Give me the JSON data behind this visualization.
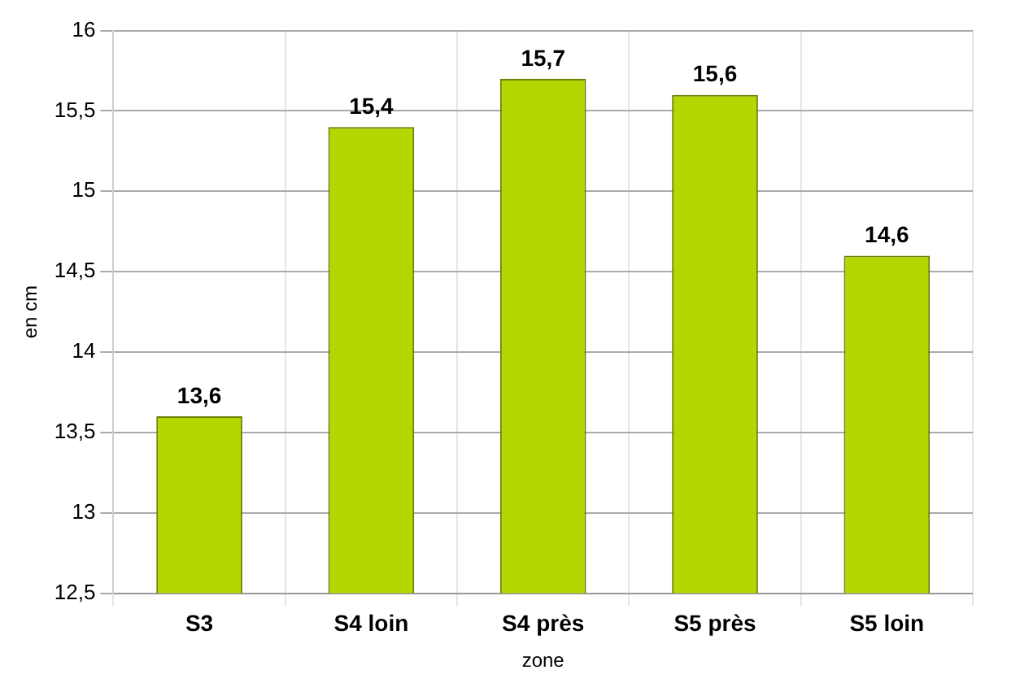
{
  "chart_data": {
    "type": "bar",
    "xlabel": "zone",
    "ylabel": "en cm",
    "categories": [
      "S3",
      "S4 loin",
      "S4 près",
      "S5 près",
      "S5 loin"
    ],
    "values": [
      13.6,
      15.4,
      15.7,
      15.6,
      14.6
    ],
    "value_labels": [
      "13,6",
      "15,4",
      "15,7",
      "15,6",
      "14,6"
    ],
    "color": "#b5d600",
    "ylim": [
      12.5,
      16
    ],
    "yticks": [
      {
        "value": 12.5,
        "label": "12,5"
      },
      {
        "value": 13,
        "label": "13"
      },
      {
        "value": 13.5,
        "label": "13,5"
      },
      {
        "value": 14,
        "label": "14"
      },
      {
        "value": 14.5,
        "label": "14,5"
      },
      {
        "value": 15,
        "label": "15"
      },
      {
        "value": 15.5,
        "label": "15,5"
      },
      {
        "value": 16,
        "label": "16"
      }
    ],
    "grid": true,
    "legend": false
  }
}
